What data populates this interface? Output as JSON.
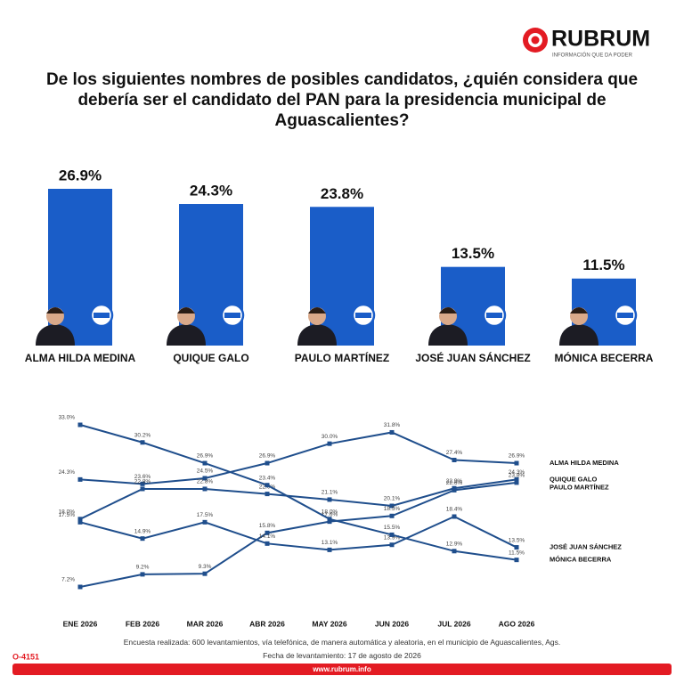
{
  "header": {
    "logo": "RUBRUM",
    "tagline": "INFORMACIÓN QUE DA PODER"
  },
  "chart_data": [
    {
      "type": "bar",
      "title": "De los siguientes nombres de posibles candidatos, ¿quién considera que debería ser el candidato del PAN para la presidencia municipal de Aguascalientes?",
      "categories": [
        "ALMA HILDA MEDINA",
        "QUIQUE GALO",
        "PAULO MARTÍNEZ",
        "JOSÉ JUAN SÁNCHEZ",
        "MÓNICA BECERRA"
      ],
      "values": [
        26.9,
        24.3,
        23.8,
        13.5,
        11.5
      ],
      "value_labels": [
        "26.9%",
        "24.3%",
        "23.8%",
        "13.5%",
        "11.5%"
      ],
      "color": "#1a5dc8"
    },
    {
      "type": "line",
      "categories": [
        "ENE 2026",
        "FEB 2026",
        "MAR 2026",
        "ABR 2026",
        "MAY 2026",
        "JUN 2026",
        "JUL 2026",
        "AGO 2026"
      ],
      "series": [
        {
          "name": "ALMA HILDA MEDINA",
          "color": "#1f4e8c",
          "values": [
            24.3,
            23.6,
            24.5,
            26.9,
            30.0,
            31.8,
            27.4,
            26.9
          ],
          "value_labels": [
            "24.3%",
            "23.6%",
            "24.5%",
            "26.9%",
            "30.0%",
            "31.8%",
            "27.4%",
            "26.9%"
          ]
        },
        {
          "name": "QUIQUE GALO",
          "color": "#1f4e8c",
          "values": [
            18.0,
            22.8,
            22.8,
            22.0,
            21.1,
            20.1,
            22.9,
            24.3
          ],
          "value_labels": [
            "18.0%",
            "22.8%",
            "22.8%",
            "22.0%",
            "21.1%",
            "20.1%",
            "22.9%",
            "24.3%"
          ]
        },
        {
          "name": "PAULO MARTÍNEZ",
          "color": "#1f4e8c",
          "values": [
            7.2,
            9.2,
            9.3,
            15.8,
            17.6,
            18.5,
            22.6,
            23.8
          ],
          "value_labels": [
            "7.2%",
            "9.2%",
            "9.3%",
            "15.8%",
            "17.6%",
            "18.5%",
            "22.6%",
            "23.8%"
          ]
        },
        {
          "name": "JOSÉ JUAN SÁNCHEZ",
          "color": "#1f4e8c",
          "values": [
            17.5,
            14.9,
            17.5,
            14.1,
            13.1,
            13.9,
            18.4,
            13.5
          ],
          "value_labels": [
            "17.5%",
            "14.9%",
            "17.5%",
            "14.1%",
            "13.1%",
            "13.9%",
            "18.4%",
            "13.5%"
          ]
        },
        {
          "name": "MÓNICA BECERRA",
          "color": "#1f4e8c",
          "values": [
            33.0,
            30.2,
            26.9,
            23.4,
            18.0,
            15.5,
            12.9,
            11.5
          ],
          "value_labels": [
            "33.0%",
            "30.2%",
            "26.9%",
            "23.4%",
            "18.0%",
            "15.5%",
            "12.9%",
            "11.5%"
          ]
        }
      ]
    }
  ],
  "footer": {
    "note": "Encuesta realizada: 600 levantamientos, vía telefónica, de manera automática y aleatoria, en el municipio de Aguascalientes, Ags.",
    "date": "Fecha de levantamiento: 17 de agosto de 2026",
    "code": "O-4151",
    "url": "www.rubrum.info"
  }
}
